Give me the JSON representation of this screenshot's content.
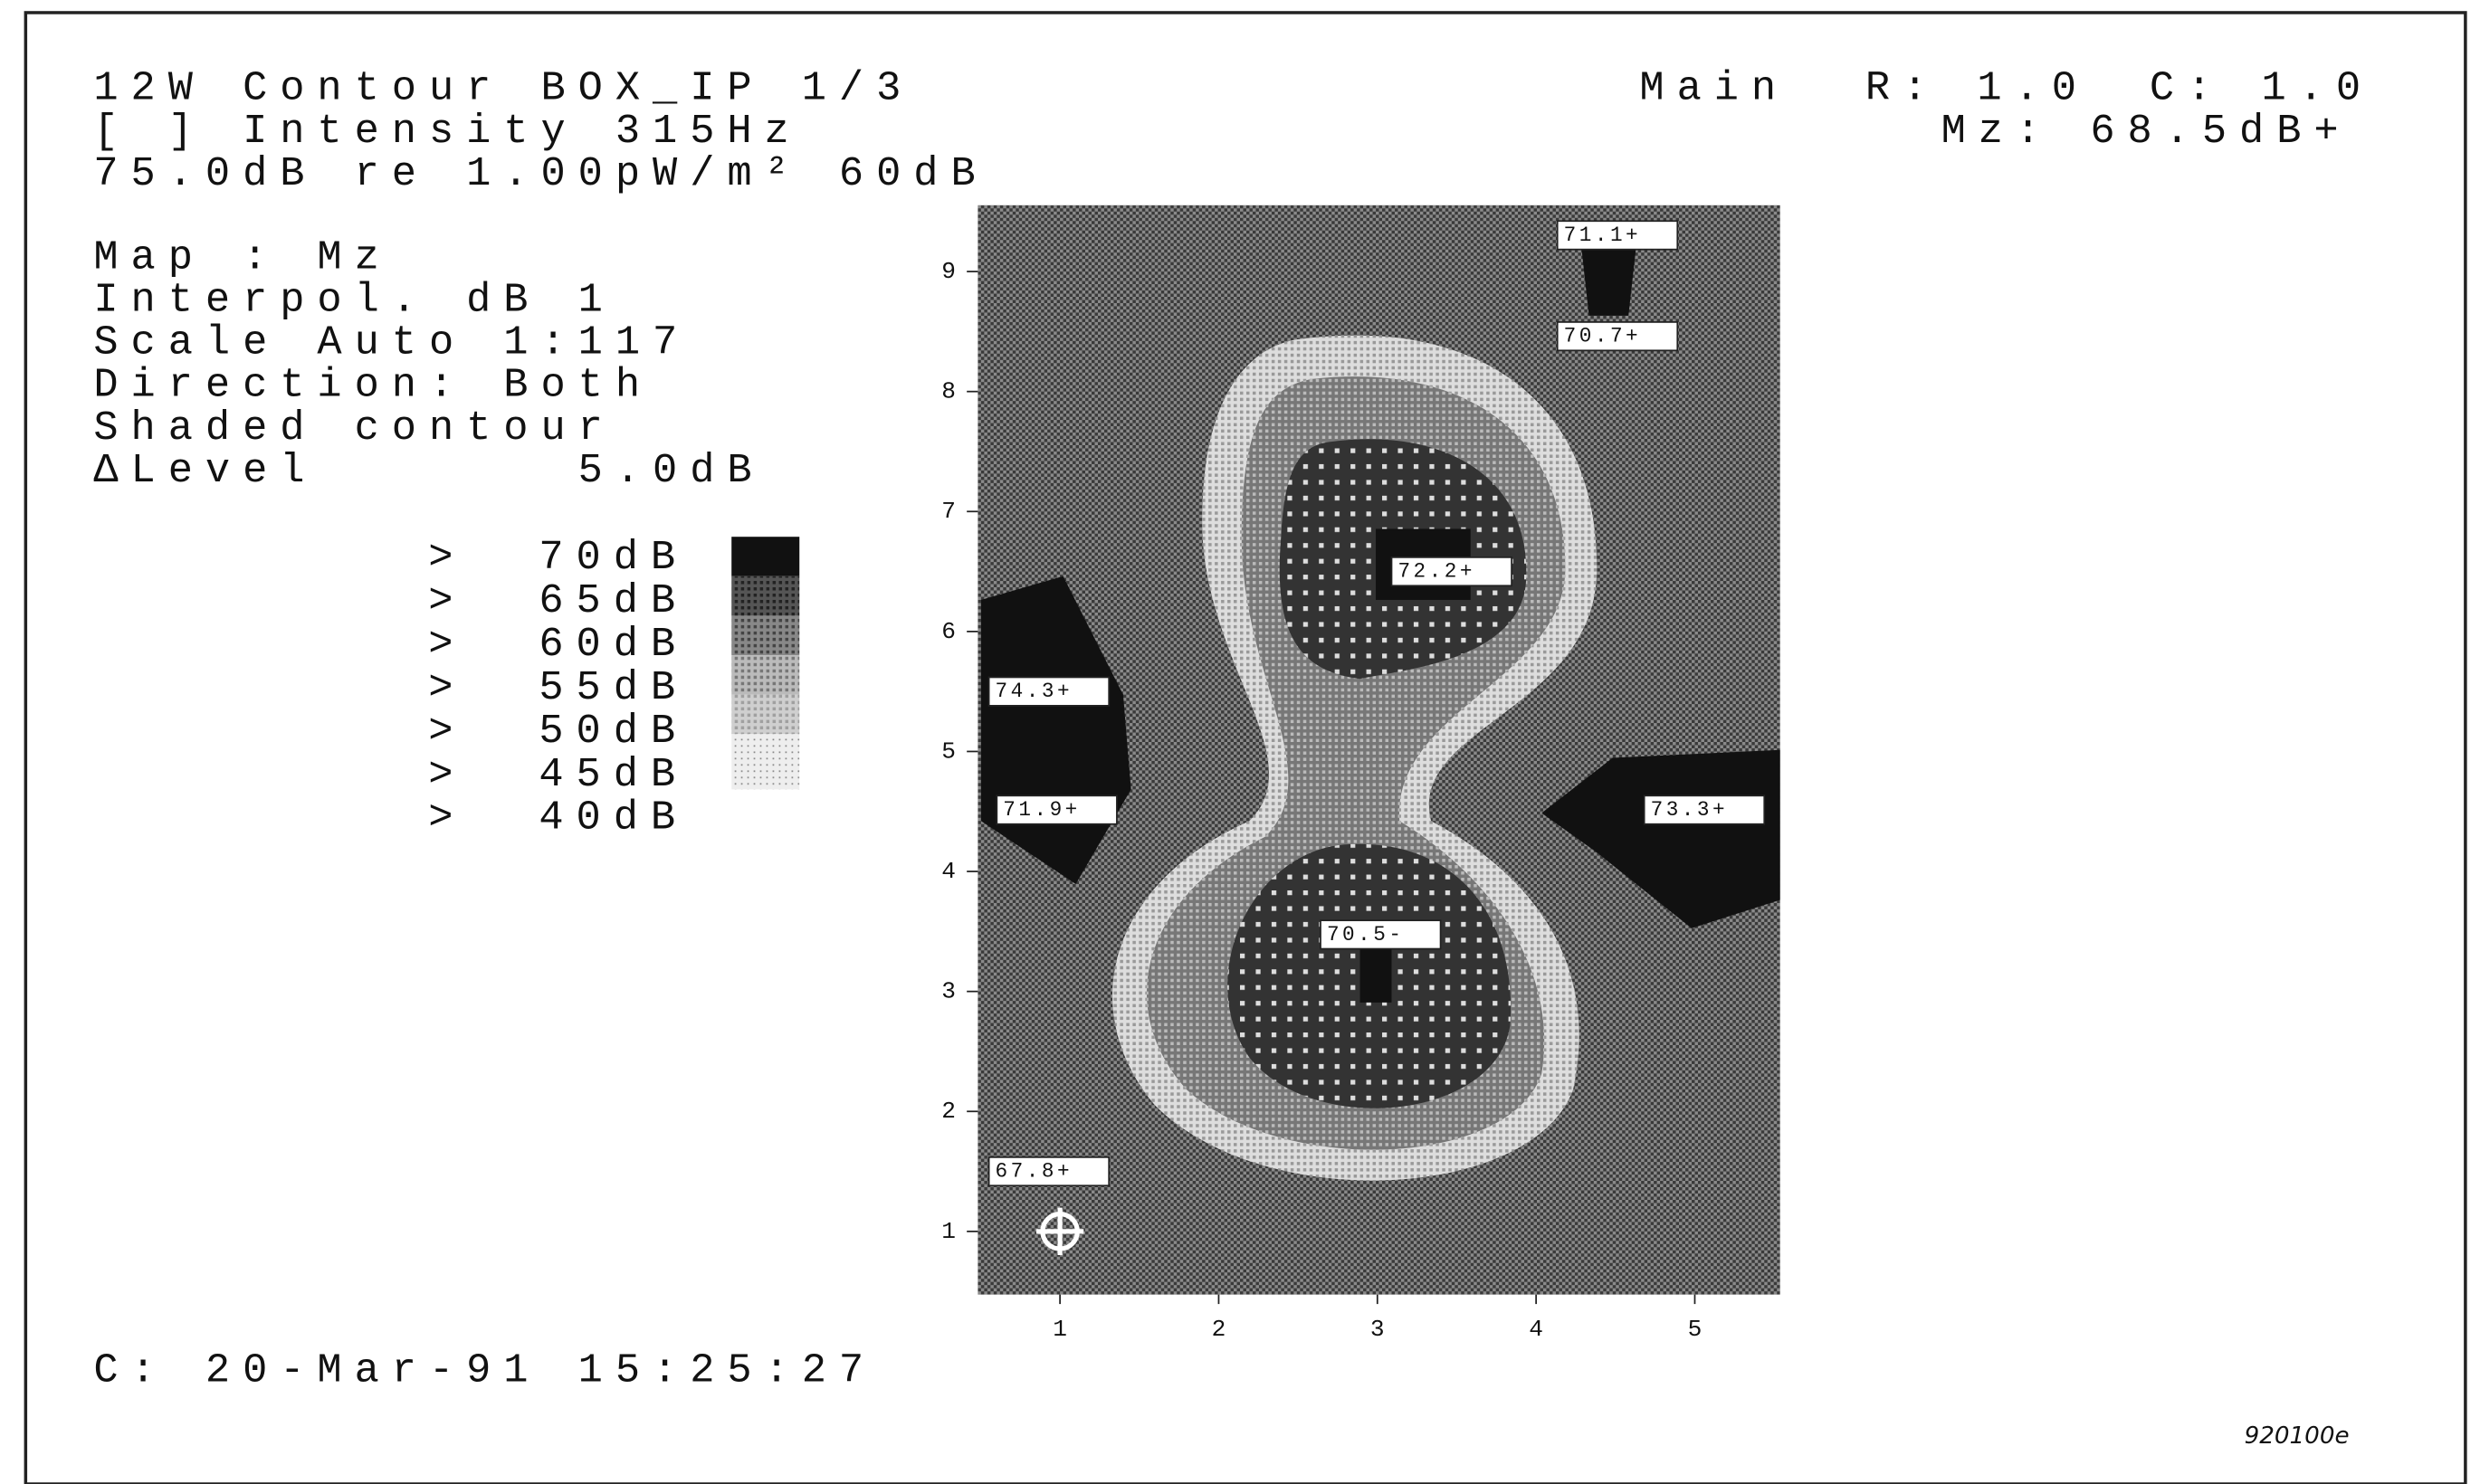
{
  "header": {
    "lines": [
      "12W Contour BOX_IP 1/3",
      "[ ] Intensity  315Hz",
      "75.0dB re 1.00pW/m² 60dB"
    ],
    "mode": "Main",
    "row": "R: 1.0",
    "col": "C: 1.0",
    "mz": "Mz:  68.5dB+"
  },
  "settings": [
    "Map : Mz",
    "Interpol. dB 1",
    "Scale Auto 1:117",
    "Direction: Both",
    "Shaded contour",
    "ΔLevel       5.0dB"
  ],
  "legend": [
    {
      "symbol": ">",
      "label": "70dB"
    },
    {
      "symbol": ">",
      "label": "65dB"
    },
    {
      "symbol": ">",
      "label": "60dB"
    },
    {
      "symbol": ">",
      "label": "55dB"
    },
    {
      "symbol": ">",
      "label": "50dB"
    },
    {
      "symbol": ">",
      "label": "45dB"
    },
    {
      "symbol": ">",
      "label": "40dB"
    }
  ],
  "x_ticks": [
    "1",
    "2",
    "3",
    "4",
    "5"
  ],
  "y_ticks": [
    "1",
    "2",
    "3",
    "4",
    "5",
    "6",
    "7",
    "8",
    "9"
  ],
  "peaks": [
    "71.1+",
    "70.7+",
    "74.3+",
    "71.9+",
    "73.3+",
    "67.8+",
    "72.2+",
    "70.5-"
  ],
  "footer": {
    "timestamp": "C: 20-Mar-91 15:25:27",
    "code": "920100e"
  }
}
